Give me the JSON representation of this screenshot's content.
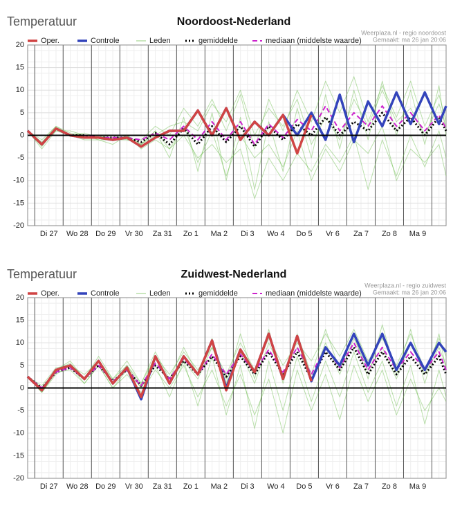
{
  "chart_data": [
    {
      "type": "line",
      "heading": "Temperatuur",
      "title": "Noordoost-Nederland",
      "source": "Weerplaza.nl - regio noordoost",
      "made": "Gemaakt: ma 26 jan 20:06",
      "x": [
        -0.25,
        0.25,
        0.75,
        1.25,
        1.75,
        2.25,
        2.75,
        3.25,
        3.75,
        4.25,
        4.75,
        5.25,
        5.75,
        6.25,
        6.75,
        7.25,
        7.75,
        8.25,
        8.75,
        9.25,
        9.75,
        10.25,
        10.75,
        11.25,
        11.75,
        12.25,
        12.75,
        13.25,
        13.75,
        14.25,
        14.5
      ],
      "xlim": [
        -0.25,
        14.5
      ],
      "xticks": [
        {
          "value": 0.5,
          "label": "Di 27"
        },
        {
          "value": 1.5,
          "label": "Wo 28"
        },
        {
          "value": 2.5,
          "label": "Do 29"
        },
        {
          "value": 3.5,
          "label": "Vr 30"
        },
        {
          "value": 4.5,
          "label": "Za 31"
        },
        {
          "value": 5.5,
          "label": "Zo 1"
        },
        {
          "value": 6.5,
          "label": "Ma 2"
        },
        {
          "value": 7.5,
          "label": "Di 3"
        },
        {
          "value": 8.5,
          "label": "Wo 4"
        },
        {
          "value": 9.5,
          "label": "Do 5"
        },
        {
          "value": 10.5,
          "label": "Vr 6"
        },
        {
          "value": 11.5,
          "label": "Za 7"
        },
        {
          "value": 12.5,
          "label": "Zo 8"
        },
        {
          "value": 13.5,
          "label": "Ma 9"
        }
      ],
      "ylim": [
        -20,
        20
      ],
      "yticks": [
        -20,
        -15,
        -10,
        -5,
        0,
        5,
        10,
        15,
        20
      ],
      "grid": true,
      "series": [
        {
          "name": "Oper.",
          "color": "#d04444",
          "line_style": "solid",
          "values": [
            1,
            -2,
            1.5,
            0,
            -0.5,
            -0.5,
            -1,
            -0.5,
            -2.5,
            -0.5,
            1,
            1,
            5.5,
            0,
            6,
            -1,
            3,
            0,
            4.5,
            -4,
            4.5,
            null,
            null,
            null,
            null,
            null,
            null,
            null,
            null,
            null,
            null
          ]
        },
        {
          "name": "Controle",
          "color": "#3344bb",
          "line_style": "solid",
          "values": [
            1,
            -2,
            1.5,
            0,
            -0.5,
            -0.5,
            -1,
            -0.5,
            -2.5,
            -0.5,
            1,
            1,
            5.5,
            0,
            6,
            -1,
            3,
            0,
            4.5,
            0,
            5,
            -1,
            9,
            -1.5,
            7.5,
            2,
            9.5,
            2.5,
            9.5,
            2.5,
            6.5
          ]
        },
        {
          "name": "Leden",
          "color": "#66bb44",
          "line_style": "thin",
          "members": [
            [
              1,
              -3,
              1,
              0,
              0,
              -1,
              -1,
              0,
              -2,
              1,
              -5,
              4,
              -8,
              5,
              -10,
              4,
              -12,
              3,
              -8,
              6,
              -5,
              9,
              -3,
              10,
              -1,
              12,
              0,
              10,
              -2,
              11,
              0
            ],
            [
              1,
              -1,
              2,
              0.5,
              0,
              0,
              0,
              -1,
              -1,
              2,
              0,
              6,
              2,
              8,
              1,
              9,
              -3,
              8,
              1,
              10,
              3,
              12,
              5,
              13,
              3,
              11,
              4,
              12,
              2,
              9,
              3
            ],
            [
              1,
              -2.5,
              1.5,
              0,
              -1,
              -1,
              -2,
              0,
              -3,
              -1,
              -3,
              0,
              -5,
              -2,
              -6,
              -3,
              -14,
              -5,
              -10,
              -4,
              -8,
              -2,
              -6,
              0,
              -12,
              -1,
              -9,
              0,
              -7,
              1,
              -5
            ],
            [
              1,
              -2,
              1,
              1,
              0,
              0,
              -1,
              -1,
              -2,
              0,
              2,
              3,
              1,
              7,
              3,
              10,
              0,
              6,
              2,
              8,
              -2,
              4,
              -1,
              8,
              2,
              10,
              3,
              6,
              0,
              7,
              2
            ],
            [
              1,
              -1.5,
              2,
              0,
              0.5,
              -0.5,
              0,
              0,
              -2,
              1,
              -3,
              2,
              -6,
              1,
              -9,
              0,
              -5,
              -2,
              -7,
              1,
              -10,
              -3,
              -8,
              -1,
              -4,
              2,
              -10,
              -3,
              -6,
              -2,
              -9
            ]
          ]
        },
        {
          "name": "gemiddelde",
          "color": "#000000",
          "line_style": "dotted",
          "values": [
            1,
            -2,
            1.5,
            0,
            0,
            -0.5,
            -0.5,
            -0.5,
            -1.5,
            0.5,
            -2,
            1.5,
            -2,
            2,
            -1.5,
            2,
            -2.5,
            2,
            -1,
            2.5,
            0,
            4,
            0,
            3,
            1,
            5,
            1,
            4,
            0,
            4,
            1
          ]
        },
        {
          "name": "mediaan (middelste waarde)",
          "color": "#cc22cc",
          "line_style": "dashed",
          "values": [
            1,
            -2,
            1.5,
            0,
            0,
            -0.5,
            -0.5,
            -0.5,
            -1,
            0.5,
            -1,
            2,
            -1,
            3,
            -1,
            3,
            -2,
            2.5,
            -0.5,
            3.5,
            1,
            6.5,
            1,
            5,
            2,
            6.5,
            2,
            5,
            1,
            4.5,
            1.5
          ]
        }
      ]
    },
    {
      "type": "line",
      "heading": "Temperatuur",
      "title": "Zuidwest-Nederland",
      "source": "Weerplaza.nl - regio zuidwest",
      "made": "Gemaakt: ma 26 jan 20:06",
      "x": [
        -0.25,
        0.25,
        0.75,
        1.25,
        1.75,
        2.25,
        2.75,
        3.25,
        3.75,
        4.25,
        4.75,
        5.25,
        5.75,
        6.25,
        6.75,
        7.25,
        7.75,
        8.25,
        8.75,
        9.25,
        9.75,
        10.25,
        10.75,
        11.25,
        11.75,
        12.25,
        12.75,
        13.25,
        13.75,
        14.25,
        14.5
      ],
      "xlim": [
        -0.25,
        14.5
      ],
      "xticks": [
        {
          "value": 0.5,
          "label": "Di 27"
        },
        {
          "value": 1.5,
          "label": "Wo 28"
        },
        {
          "value": 2.5,
          "label": "Do 29"
        },
        {
          "value": 3.5,
          "label": "Vr 30"
        },
        {
          "value": 4.5,
          "label": "Za 31"
        },
        {
          "value": 5.5,
          "label": "Zo 1"
        },
        {
          "value": 6.5,
          "label": "Ma 2"
        },
        {
          "value": 7.5,
          "label": "Di 3"
        },
        {
          "value": 8.5,
          "label": "Wo 4"
        },
        {
          "value": 9.5,
          "label": "Do 5"
        },
        {
          "value": 10.5,
          "label": "Vr 6"
        },
        {
          "value": 11.5,
          "label": "Za 7"
        },
        {
          "value": 12.5,
          "label": "Zo 8"
        },
        {
          "value": 13.5,
          "label": "Ma 9"
        }
      ],
      "ylim": [
        -20,
        20
      ],
      "yticks": [
        -20,
        -15,
        -10,
        -5,
        0,
        5,
        10,
        15,
        20
      ],
      "grid": true,
      "series": [
        {
          "name": "Oper.",
          "color": "#d04444",
          "line_style": "solid",
          "values": [
            2.5,
            -0.5,
            4,
            5,
            2,
            6,
            1,
            4.5,
            -2,
            7,
            1,
            7,
            3,
            10.5,
            -0.5,
            8.5,
            3.5,
            12,
            2,
            11.5,
            1.5,
            null,
            null,
            null,
            null,
            null,
            null,
            null,
            null,
            null,
            null
          ]
        },
        {
          "name": "Controle",
          "color": "#3344bb",
          "line_style": "solid",
          "values": [
            2.5,
            -0.5,
            4,
            5,
            2,
            6,
            1,
            4.5,
            -2.5,
            7,
            1,
            7,
            3,
            10.5,
            0,
            8.5,
            3.5,
            12,
            2,
            11.5,
            1.5,
            9,
            5,
            12,
            5,
            12,
            4,
            10,
            4,
            10,
            8
          ]
        },
        {
          "name": "Leden",
          "color": "#66bb44",
          "line_style": "thin",
          "members": [
            [
              2.5,
              0,
              4,
              6,
              2,
              7,
              2,
              6,
              1,
              8,
              2,
              9,
              3,
              11,
              1,
              12,
              2,
              13,
              1,
              12,
              3,
              13,
              4,
              12,
              2,
              14,
              3,
              13,
              1,
              12,
              4
            ],
            [
              2.5,
              -1,
              3,
              5,
              1,
              5,
              0,
              4,
              0,
              5,
              -2,
              6,
              -4,
              7,
              -6,
              5,
              -9,
              6,
              -5,
              7,
              -3,
              6,
              -2,
              8,
              -1,
              6,
              -4,
              5,
              -8,
              4,
              -2
            ],
            [
              2.5,
              0.5,
              4.5,
              5,
              3,
              6,
              2,
              5,
              1,
              7,
              3,
              8,
              4,
              9,
              3,
              10,
              4,
              11,
              5,
              10,
              6,
              12,
              7,
              13,
              6,
              11,
              5,
              12,
              4,
              11,
              7
            ],
            [
              2.5,
              -1,
              3.5,
              4,
              1,
              5,
              0,
              3,
              -1,
              4,
              0,
              5,
              -2,
              4,
              -4,
              3,
              -6,
              2,
              -10,
              4,
              -5,
              3,
              -7,
              5,
              -3,
              4,
              -6,
              2,
              -5,
              0,
              -3
            ],
            [
              2.5,
              0,
              4,
              5.5,
              2,
              6,
              1,
              5,
              0,
              7,
              1,
              6,
              2,
              9,
              2,
              8,
              1,
              10,
              3,
              9,
              2,
              10,
              3,
              11,
              4,
              9,
              2,
              10,
              3,
              9,
              5
            ]
          ]
        },
        {
          "name": "gemiddelde",
          "color": "#000000",
          "line_style": "dotted",
          "values": [
            2.5,
            0,
            3.5,
            4.5,
            2,
            5,
            1.5,
            4,
            0.5,
            5,
            2,
            6,
            3,
            7,
            2.5,
            7,
            3,
            8,
            3,
            8,
            2,
            8,
            4,
            9,
            3,
            8,
            3,
            7,
            3,
            7,
            3
          ]
        },
        {
          "name": "mediaan (middelste waarde)",
          "color": "#cc22cc",
          "line_style": "dashed",
          "values": [
            2.5,
            0,
            3.5,
            4.5,
            2,
            5,
            1.5,
            4,
            0.5,
            5.5,
            2,
            6.5,
            3,
            7.5,
            3,
            7.5,
            3.5,
            8.5,
            3.5,
            9,
            3,
            9,
            4.5,
            10,
            4,
            9,
            4,
            8,
            4,
            8,
            4
          ]
        }
      ]
    }
  ]
}
